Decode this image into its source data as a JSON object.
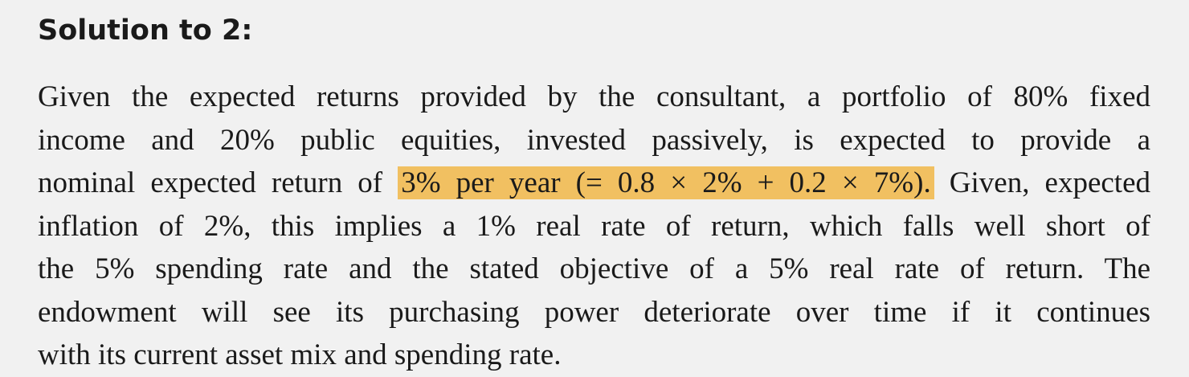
{
  "heading": "Solution to 2:",
  "paragraph": {
    "lines": [
      [
        "Given the expected returns provided by the consultant, a portfolio of 80% fixed"
      ],
      [
        "income and 20% public equities, invested passively, is expected to provide a"
      ],
      [
        "nominal expected return of",
        "3% per year (= 0.8 × 2% + 0.2 × 7%).",
        "Given, expected"
      ],
      [
        "inflation of 2%, this implies a 1% real rate of return, which falls well short of"
      ],
      [
        "the 5% spending rate and the stated objective of a 5% real rate of return. The"
      ],
      [
        "endowment will see its purchasing power deteriorate over time if it continues"
      ],
      [
        "with its current asset mix and spending rate."
      ]
    ]
  }
}
